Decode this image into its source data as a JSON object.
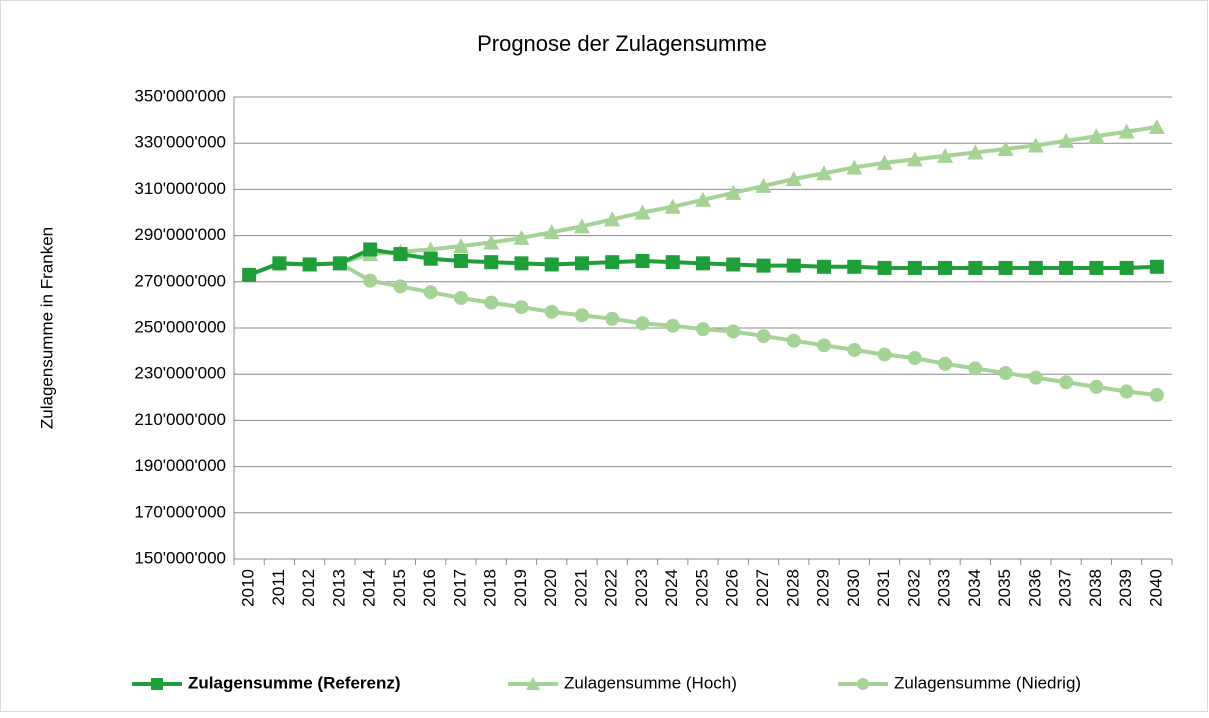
{
  "chart_data": {
    "type": "line",
    "title": "Prognose der Zulagensumme",
    "y_label": "Zulagensumme in Franken",
    "categories": [
      "2010",
      "2011",
      "2012",
      "2013",
      "2014",
      "2015",
      "2016",
      "2017",
      "2018",
      "2019",
      "2020",
      "2021",
      "2022",
      "2023",
      "2024",
      "2025",
      "2026",
      "2027",
      "2028",
      "2029",
      "2030",
      "2031",
      "2032",
      "2033",
      "2034",
      "2035",
      "2036",
      "2037",
      "2038",
      "2039",
      "2040"
    ],
    "series": [
      {
        "name": "Zulagensumme (Referenz)",
        "color": "#1f9e3a",
        "marker": "square",
        "values": [
          273000000,
          278000000,
          277500000,
          278000000,
          284000000,
          282000000,
          280000000,
          279000000,
          278500000,
          278000000,
          277500000,
          278000000,
          278500000,
          279000000,
          278500000,
          278000000,
          277500000,
          277000000,
          277000000,
          276500000,
          276500000,
          276000000,
          276000000,
          276000000,
          276000000,
          276000000,
          276000000,
          276000000,
          276000000,
          276000000,
          276500000
        ]
      },
      {
        "name": "Zulagensumme (Hoch)",
        "color": "#a5d396",
        "marker": "triangle",
        "values": [
          273000000,
          278000000,
          277500000,
          278000000,
          282000000,
          283000000,
          284000000,
          285500000,
          287000000,
          289000000,
          291500000,
          294000000,
          297000000,
          300000000,
          302500000,
          305500000,
          308500000,
          311500000,
          314500000,
          317000000,
          319500000,
          321500000,
          323000000,
          324500000,
          326000000,
          327500000,
          329000000,
          331000000,
          333000000,
          335000000,
          337000000
        ]
      },
      {
        "name": "Zulagensumme (Niedrig)",
        "color": "#a5d396",
        "marker": "circle",
        "values": [
          273000000,
          278000000,
          277500000,
          278000000,
          270500000,
          268000000,
          265500000,
          263000000,
          261000000,
          259000000,
          257000000,
          255500000,
          254000000,
          252000000,
          251000000,
          249500000,
          248500000,
          246500000,
          244500000,
          242500000,
          240500000,
          238500000,
          237000000,
          234500000,
          232500000,
          230500000,
          228500000,
          226500000,
          224500000,
          222500000,
          221000000
        ]
      }
    ],
    "ylim": [
      150000000,
      350000000
    ],
    "yticks": [
      {
        "value": 150000000,
        "label": "150'000'000"
      },
      {
        "value": 170000000,
        "label": "170'000'000"
      },
      {
        "value": 190000000,
        "label": "190'000'000"
      },
      {
        "value": 210000000,
        "label": "210'000'000"
      },
      {
        "value": 230000000,
        "label": "230'000'000"
      },
      {
        "value": 250000000,
        "label": "250'000'000"
      },
      {
        "value": 270000000,
        "label": "270'000'000"
      },
      {
        "value": 290000000,
        "label": "290'000'000"
      },
      {
        "value": 310000000,
        "label": "310'000'000"
      },
      {
        "value": 330000000,
        "label": "330'000'000"
      },
      {
        "value": 350000000,
        "label": "350'000'000"
      }
    ],
    "grid": true,
    "legend": "bottom"
  }
}
